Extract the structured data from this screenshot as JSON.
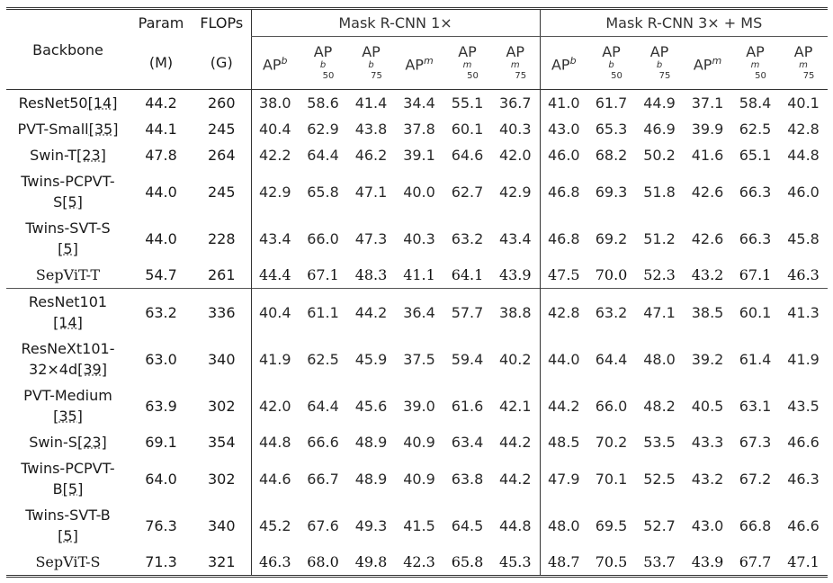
{
  "header": {
    "backbone": "Backbone",
    "param": "Param",
    "param_unit": "(M)",
    "flops": "FLOPs",
    "flops_unit": "(G)",
    "group1": "Mask R-CNN 1×",
    "group2": "Mask R-CNN 3× + MS",
    "metrics": [
      {
        "base": "AP",
        "sup": "b",
        "sub1": "",
        "sub2": ""
      },
      {
        "base": "AP",
        "sup": "",
        "sub1": "b",
        "sub2": "50"
      },
      {
        "base": "AP",
        "sup": "",
        "sub1": "b",
        "sub2": "75"
      },
      {
        "base": "AP",
        "sup": "m",
        "sub1": "",
        "sub2": ""
      },
      {
        "base": "AP",
        "sup": "",
        "sub1": "m",
        "sub2": "50"
      },
      {
        "base": "AP",
        "sup": "",
        "sub1": "m",
        "sub2": "75"
      }
    ]
  },
  "rows": [
    {
      "backbone": [
        "ResNet50",
        "[14]"
      ],
      "param": "44.2",
      "flops": "260",
      "m1x": [
        "38.0",
        "58.6",
        "41.4",
        "34.4",
        "55.1",
        "36.7"
      ],
      "m3x": [
        "41.0",
        "61.7",
        "44.9",
        "37.1",
        "58.4",
        "40.1"
      ],
      "bold": false,
      "tall": false
    },
    {
      "backbone": [
        "PVT-Small",
        "[35]"
      ],
      "param": "44.1",
      "flops": "245",
      "m1x": [
        "40.4",
        "62.9",
        "43.8",
        "37.8",
        "60.1",
        "40.3"
      ],
      "m3x": [
        "43.0",
        "65.3",
        "46.9",
        "39.9",
        "62.5",
        "42.8"
      ],
      "bold": false,
      "tall": false
    },
    {
      "backbone": [
        "Swin-T",
        "[23]"
      ],
      "param": "47.8",
      "flops": "264",
      "m1x": [
        "42.2",
        "64.4",
        "46.2",
        "39.1",
        "64.6",
        "42.0"
      ],
      "m3x": [
        "46.0",
        "68.2",
        "50.2",
        "41.6",
        "65.1",
        "44.8"
      ],
      "bold": false,
      "tall": false
    },
    {
      "backbone": [
        "Twins-PCPVT-",
        "S",
        "[5]"
      ],
      "param": "44.0",
      "flops": "245",
      "m1x": [
        "42.9",
        "65.8",
        "47.1",
        "40.0",
        "62.7",
        "42.9"
      ],
      "m3x": [
        "46.8",
        "69.3",
        "51.8",
        "42.6",
        "66.3",
        "46.0"
      ],
      "bold": false,
      "tall": true
    },
    {
      "backbone": [
        "Twins-SVT-S",
        "[",
        "5]"
      ],
      "param": "44.0",
      "flops": "228",
      "m1x": [
        "43.4",
        "66.0",
        "47.3",
        "40.3",
        "63.2",
        "43.4"
      ],
      "m3x": [
        "46.8",
        "69.2",
        "51.2",
        "42.6",
        "66.3",
        "45.8"
      ],
      "bold": false,
      "tall": true
    },
    {
      "backbone": [
        "SepViT-T",
        ""
      ],
      "param": "54.7",
      "flops": "261",
      "m1x": [
        "44.4",
        "67.1",
        "48.3",
        "41.1",
        "64.1",
        "43.9"
      ],
      "m3x": [
        "47.5",
        "70.0",
        "52.3",
        "43.2",
        "67.1",
        "46.3"
      ],
      "bold": true,
      "tall": false
    },
    {
      "backbone": [
        "ResNet101",
        "[14",
        "]"
      ],
      "param": "63.2",
      "flops": "336",
      "m1x": [
        "40.4",
        "61.1",
        "44.2",
        "36.4",
        "57.7",
        "38.8"
      ],
      "m3x": [
        "42.8",
        "63.2",
        "47.1",
        "38.5",
        "60.1",
        "41.3"
      ],
      "bold": false,
      "tall": true
    },
    {
      "backbone": [
        "ResNeXt101-",
        "32×4d",
        "[39]"
      ],
      "param": "63.0",
      "flops": "340",
      "m1x": [
        "41.9",
        "62.5",
        "45.9",
        "37.5",
        "59.4",
        "40.2"
      ],
      "m3x": [
        "44.0",
        "64.4",
        "48.0",
        "39.2",
        "61.4",
        "41.9"
      ],
      "bold": false,
      "tall": true
    },
    {
      "backbone": [
        "PVT-Medium",
        "[",
        "35]"
      ],
      "param": "63.9",
      "flops": "302",
      "m1x": [
        "42.0",
        "64.4",
        "45.6",
        "39.0",
        "61.6",
        "42.1"
      ],
      "m3x": [
        "44.2",
        "66.0",
        "48.2",
        "40.5",
        "63.1",
        "43.5"
      ],
      "bold": false,
      "tall": true
    },
    {
      "backbone": [
        "Swin-S",
        "[23]"
      ],
      "param": "69.1",
      "flops": "354",
      "m1x": [
        "44.8",
        "66.6",
        "48.9",
        "40.9",
        "63.4",
        "44.2"
      ],
      "m3x": [
        "48.5",
        "70.2",
        "53.5",
        "43.3",
        "67.3",
        "46.6"
      ],
      "bold": false,
      "tall": false
    },
    {
      "backbone": [
        "Twins-PCPVT-",
        "B",
        "[5]"
      ],
      "param": "64.0",
      "flops": "302",
      "m1x": [
        "44.6",
        "66.7",
        "48.9",
        "40.9",
        "63.8",
        "44.2"
      ],
      "m3x": [
        "47.9",
        "70.1",
        "52.5",
        "43.2",
        "67.2",
        "46.3"
      ],
      "bold": false,
      "tall": true
    },
    {
      "backbone": [
        "Twins-SVT-B",
        "[",
        "5]"
      ],
      "param": "76.3",
      "flops": "340",
      "m1x": [
        "45.2",
        "67.6",
        "49.3",
        "41.5",
        "64.5",
        "44.8"
      ],
      "m3x": [
        "48.0",
        "69.5",
        "52.7",
        "43.0",
        "66.8",
        "46.6"
      ],
      "bold": false,
      "tall": true
    },
    {
      "backbone": [
        "SepViT-S",
        ""
      ],
      "param": "71.3",
      "flops": "321",
      "m1x": [
        "46.3",
        "68.0",
        "49.8",
        "42.3",
        "65.8",
        "45.3"
      ],
      "m3x": [
        "48.7",
        "70.5",
        "53.7",
        "43.9",
        "67.7",
        "47.1"
      ],
      "bold": true,
      "tall": false
    }
  ]
}
